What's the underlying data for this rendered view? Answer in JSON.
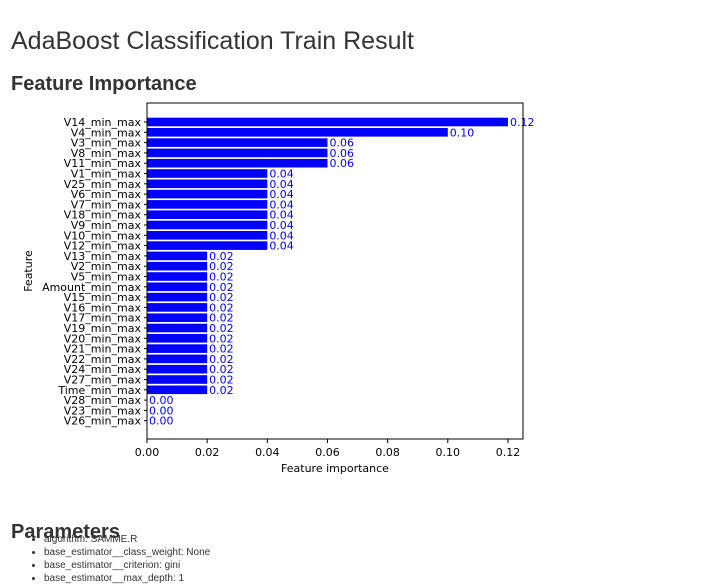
{
  "page": {
    "title": "AdaBoost Classification Train Result",
    "section_title": "Feature Importance",
    "params_title": "Parameters",
    "params": [
      "algorithm: SAMME.R",
      "base_estimator__class_weight: None",
      "base_estimator__criterion: gini",
      "base_estimator__max_depth: 1"
    ]
  },
  "colors": {
    "bar": "#0000ff",
    "label": "#0000ff",
    "axis": "#000000"
  },
  "chart_data": {
    "type": "bar",
    "orientation": "horizontal",
    "xlabel": "Feature importance",
    "ylabel": "Feature",
    "xlim": [
      0.0,
      0.125
    ],
    "xticks": [
      "0.00",
      "0.02",
      "0.04",
      "0.06",
      "0.08",
      "0.10",
      "0.12"
    ],
    "xtick_values": [
      0.0,
      0.02,
      0.04,
      0.06,
      0.08,
      0.1,
      0.12
    ],
    "grid": false,
    "categories": [
      "V14_min_max",
      "V4_min_max",
      "V3_min_max",
      "V8_min_max",
      "V11_min_max",
      "V1_min_max",
      "V25_min_max",
      "V6_min_max",
      "V7_min_max",
      "V18_min_max",
      "V9_min_max",
      "V10_min_max",
      "V12_min_max",
      "V13_min_max",
      "V2_min_max",
      "V5_min_max",
      "Amount_min_max",
      "V15_min_max",
      "V16_min_max",
      "V17_min_max",
      "V19_min_max",
      "V20_min_max",
      "V21_min_max",
      "V22_min_max",
      "V24_min_max",
      "V27_min_max",
      "Time_min_max",
      "V28_min_max",
      "V23_min_max",
      "V26_min_max"
    ],
    "values": [
      0.12,
      0.1,
      0.06,
      0.06,
      0.06,
      0.04,
      0.04,
      0.04,
      0.04,
      0.04,
      0.04,
      0.04,
      0.04,
      0.02,
      0.02,
      0.02,
      0.02,
      0.02,
      0.02,
      0.02,
      0.02,
      0.02,
      0.02,
      0.02,
      0.02,
      0.02,
      0.02,
      0.0,
      0.0,
      0.0
    ],
    "value_labels": [
      "0.12",
      "0.10",
      "0.06",
      "0.06",
      "0.06",
      "0.04",
      "0.04",
      "0.04",
      "0.04",
      "0.04",
      "0.04",
      "0.04",
      "0.04",
      "0.02",
      "0.02",
      "0.02",
      "0.02",
      "0.02",
      "0.02",
      "0.02",
      "0.02",
      "0.02",
      "0.02",
      "0.02",
      "0.02",
      "0.02",
      "0.02",
      "0.00",
      "0.00",
      "0.00"
    ]
  }
}
